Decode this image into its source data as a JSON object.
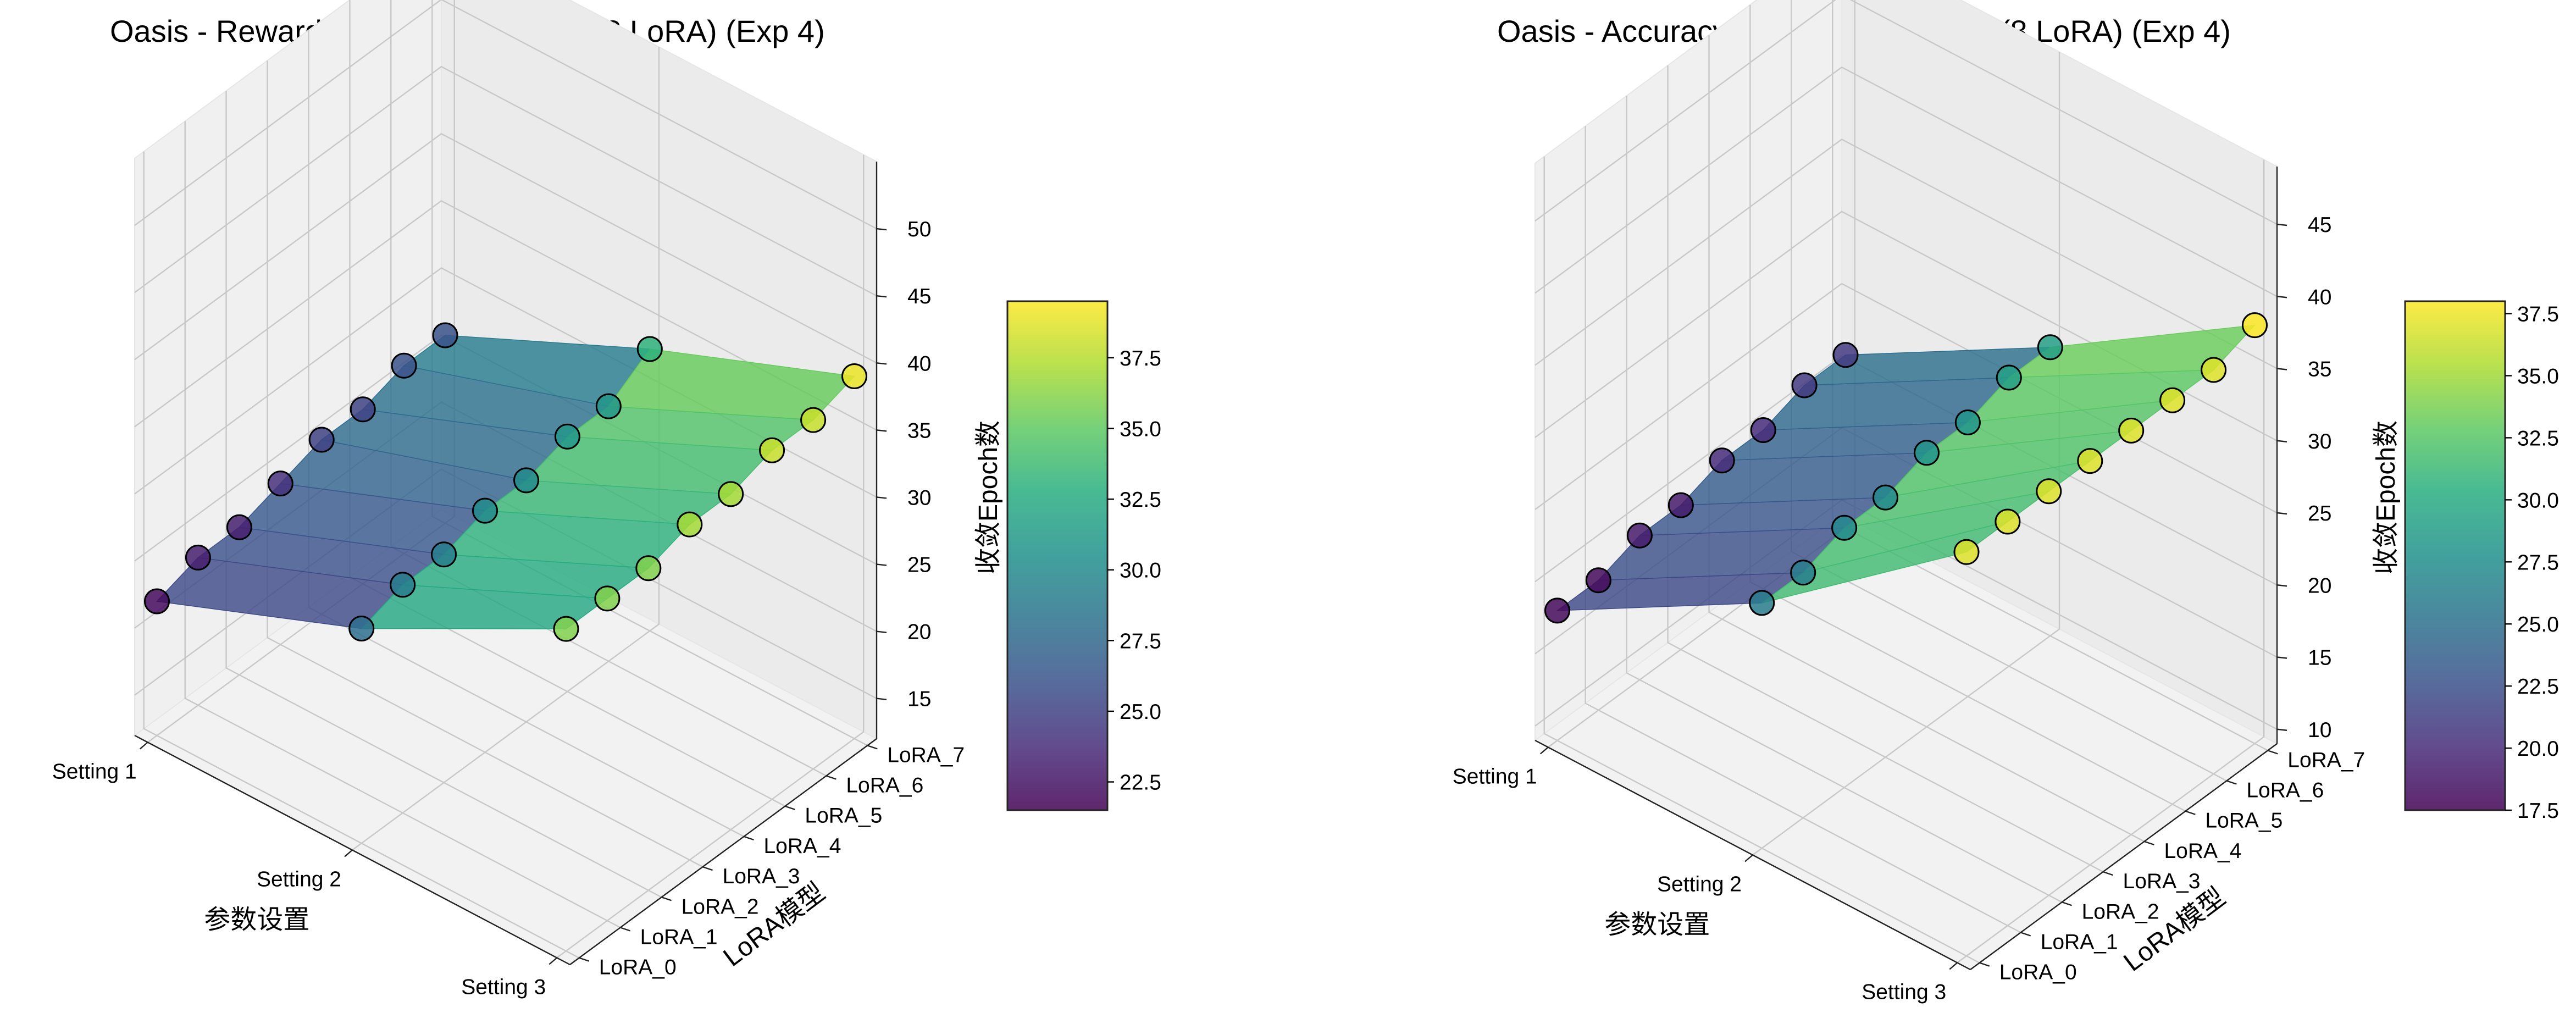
{
  "chart_data": [
    {
      "type": "surface3d",
      "title": "Oasis - Reward 收敛速度3D热力图 (8 LoRA) (Exp 4)",
      "xlabel": "参数设置",
      "ylabel": "LoRA模型",
      "zlabel": "收敛Epoch数",
      "x_categories": [
        "Setting 1",
        "Setting 2",
        "Setting 3"
      ],
      "y_categories": [
        "LoRA_0",
        "LoRA_1",
        "LoRA_2",
        "LoRA_3",
        "LoRA_4",
        "LoRA_5",
        "LoRA_6",
        "LoRA_7"
      ],
      "z_ticks": [
        15,
        20,
        25,
        30,
        35,
        40,
        45,
        50
      ],
      "zlim": [
        12,
        55
      ],
      "values": [
        [
          22,
          23,
          23,
          24,
          25,
          25,
          26,
          26
        ],
        [
          28,
          29,
          29,
          30,
          30,
          31,
          31,
          33
        ],
        [
          36,
          36,
          36,
          37,
          37,
          38,
          38,
          39
        ]
      ],
      "colorbar": {
        "colormap": "viridis",
        "range": [
          21.5,
          39.5
        ],
        "ticks": [
          22.5,
          25.0,
          27.5,
          30.0,
          32.5,
          35.0,
          37.5
        ]
      },
      "grid": true
    },
    {
      "type": "surface3d",
      "title": "Oasis - Accuracy 收敛速度3D热力图 (8 LoRA) (Exp 4)",
      "xlabel": "参数设置",
      "ylabel": "LoRA模型",
      "zlabel": "收敛Epoch数",
      "x_categories": [
        "Setting 1",
        "Setting 2",
        "Setting 3"
      ],
      "y_categories": [
        "LoRA_0",
        "LoRA_1",
        "LoRA_2",
        "LoRA_3",
        "LoRA_4",
        "LoRA_5",
        "LoRA_6",
        "LoRA_7"
      ],
      "z_ticks": [
        10,
        15,
        20,
        25,
        30,
        35,
        40,
        45
      ],
      "zlim": [
        9,
        49
      ],
      "values": [
        [
          18,
          18,
          19,
          19,
          20,
          20,
          21,
          21
        ],
        [
          26,
          26,
          27,
          27,
          28,
          28,
          29,
          29
        ],
        [
          37,
          37,
          37,
          37,
          37,
          37,
          37,
          38
        ]
      ],
      "colorbar": {
        "colormap": "viridis",
        "range": [
          17.5,
          38
        ],
        "ticks": [
          17.5,
          20.0,
          22.5,
          25.0,
          27.5,
          30.0,
          32.5,
          35.0,
          37.5
        ]
      },
      "grid": true
    }
  ]
}
